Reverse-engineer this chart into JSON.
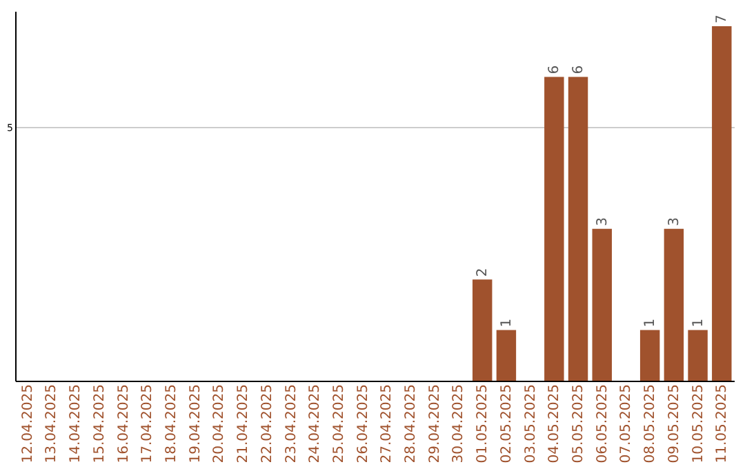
{
  "chart_data": {
    "type": "bar",
    "categories": [
      "12.04.2025",
      "13.04.2025",
      "14.04.2025",
      "15.04.2025",
      "16.04.2025",
      "17.04.2025",
      "18.04.2025",
      "19.04.2025",
      "20.04.2025",
      "21.04.2025",
      "22.04.2025",
      "23.04.2025",
      "24.04.2025",
      "25.04.2025",
      "26.04.2025",
      "27.04.2025",
      "28.04.2025",
      "29.04.2025",
      "30.04.2025",
      "01.05.2025",
      "02.05.2025",
      "03.05.2025",
      "04.05.2025",
      "05.05.2025",
      "06.05.2025",
      "07.05.2025",
      "08.05.2025",
      "09.05.2025",
      "10.05.2025",
      "11.05.2025"
    ],
    "values": [
      null,
      null,
      null,
      null,
      null,
      null,
      null,
      null,
      null,
      null,
      null,
      null,
      null,
      null,
      null,
      null,
      null,
      null,
      null,
      2,
      1,
      null,
      6,
      6,
      3,
      null,
      1,
      3,
      1,
      7
    ],
    "color": "#a0522d",
    "ylim": [
      0,
      7.3
    ],
    "yticks": [
      5
    ],
    "grid": "y",
    "data_labels": true
  }
}
